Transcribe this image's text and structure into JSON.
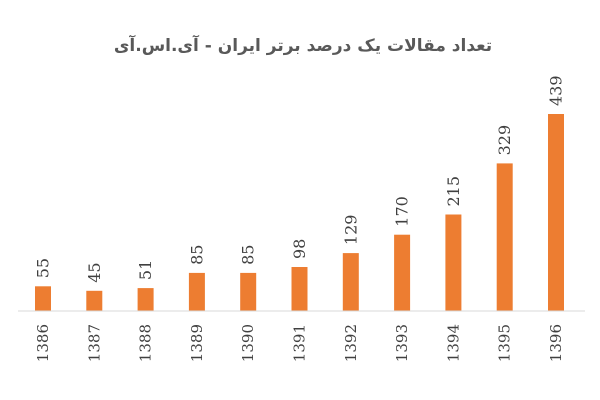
{
  "chart_data": {
    "type": "bar",
    "title": "تعداد مقالات یک درصد برتر ایران - آی.اس.آی",
    "xlabel": "",
    "ylabel": "",
    "categories": [
      "1386",
      "1387",
      "1388",
      "1389",
      "1390",
      "1391",
      "1392",
      "1393",
      "1394",
      "1395",
      "1396"
    ],
    "values": [
      55,
      45,
      51,
      85,
      85,
      98,
      129,
      170,
      215,
      329,
      439
    ],
    "data_labels": [
      "55",
      "45",
      "51",
      "85",
      "85",
      "98",
      "129",
      "170",
      "215",
      "329",
      "439"
    ],
    "ylim": [
      0,
      439
    ],
    "grid": false,
    "legend": "none",
    "bar_color": "#ed7d31",
    "axis_color": "#d9d9d9"
  }
}
